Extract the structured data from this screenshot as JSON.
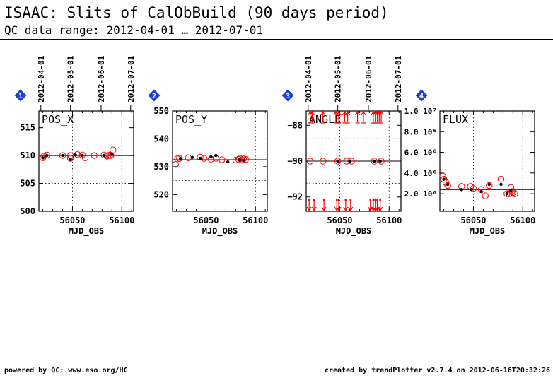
{
  "header": {
    "title": "ISAAC: Slits of CalObBuild (90 days period)",
    "subtitle": "QC data range: 2012-04-01 … 2012-07-01"
  },
  "footer": {
    "left": "powered by QC: www.eso.org/HC",
    "right": "created by trendPlotter v2.7.4 on 2012-06-16T20:32:26"
  },
  "colors": {
    "axis": "#000000",
    "marker": "#ff0000",
    "badge": "#1f3fd8",
    "badge_text": "#ffffff"
  },
  "chart_data": [
    {
      "type": "scatter",
      "index": "1",
      "title": "POS_X",
      "xlabel": "MJD_OBS",
      "xlim": [
        56016,
        56112
      ],
      "ylim": [
        500,
        518
      ],
      "yticks": [
        500,
        505,
        510,
        515
      ],
      "ytick_labels": [
        "500",
        "505",
        "510",
        "515"
      ],
      "xticks": [
        56050,
        56100
      ],
      "date_ticks": [
        {
          "mjd": 56018,
          "label": "2012-04-01"
        },
        {
          "mjd": 56048,
          "label": "2012-05-01"
        },
        {
          "mjd": 56079,
          "label": "2012-06-01"
        },
        {
          "mjd": 56109,
          "label": "2012-07-01"
        }
      ],
      "reference_line": 510,
      "dotted_lines": [
        505,
        513
      ],
      "open_points": [
        [
          56020,
          509.6
        ],
        [
          56021,
          509.9
        ],
        [
          56024,
          510.1
        ],
        [
          56040,
          510.0
        ],
        [
          56048,
          510.0
        ],
        [
          56048,
          509.5
        ],
        [
          56055,
          510.2
        ],
        [
          56060,
          510.1
        ],
        [
          56063,
          509.6
        ],
        [
          56072,
          510.0
        ],
        [
          56082,
          510.1
        ],
        [
          56085,
          509.9
        ],
        [
          56086,
          510.0
        ],
        [
          56088,
          510.1
        ],
        [
          56089,
          510.0
        ],
        [
          56091,
          511.0
        ]
      ],
      "filled_points": [
        [
          56020,
          509.6
        ],
        [
          56024,
          510.0
        ],
        [
          56040,
          510.0
        ],
        [
          56048,
          509.3
        ],
        [
          56053,
          510.1
        ],
        [
          56060,
          510.0
        ],
        [
          56082,
          510.0
        ],
        [
          56090,
          510.3
        ]
      ]
    },
    {
      "type": "scatter",
      "index": "2",
      "title": "POS_Y",
      "xlabel": "MJD_OBS",
      "xlim": [
        56016,
        56112
      ],
      "ylim": [
        514,
        550
      ],
      "yticks": [
        520,
        530,
        540,
        550
      ],
      "ytick_labels": [
        "520",
        "530",
        "540",
        "550"
      ],
      "xticks": [
        56050,
        56100
      ],
      "reference_line": 532.5,
      "dotted_lines": [
        525,
        540
      ],
      "open_points": [
        [
          56019,
          530.8
        ],
        [
          56021,
          532.8
        ],
        [
          56023,
          533.0
        ],
        [
          56032,
          533.2
        ],
        [
          56044,
          533.4
        ],
        [
          56048,
          533.0
        ],
        [
          56055,
          532.7
        ],
        [
          56060,
          533.0
        ],
        [
          56066,
          532.5
        ],
        [
          56080,
          532.4
        ],
        [
          56083,
          532.6
        ],
        [
          56084,
          533.0
        ],
        [
          56086,
          532.5
        ],
        [
          56088,
          532.8
        ],
        [
          56090,
          532.6
        ]
      ],
      "filled_points": [
        [
          56024,
          533.0
        ],
        [
          56036,
          533.3
        ],
        [
          56044,
          533.0
        ],
        [
          56055,
          533.5
        ],
        [
          56060,
          534.0
        ],
        [
          56072,
          531.7
        ],
        [
          56084,
          532.5
        ],
        [
          56088,
          532.3
        ]
      ]
    },
    {
      "type": "scatter",
      "index": "3",
      "title": "ANGLE",
      "xlabel": "MJD_OBS",
      "xlim": [
        56016,
        56112
      ],
      "ylim": [
        -92.8,
        -87.2
      ],
      "yticks": [
        -92,
        -90,
        -88
      ],
      "ytick_labels": [
        "−92",
        "−90",
        "−88"
      ],
      "xticks": [
        56050,
        56100
      ],
      "date_ticks": [
        {
          "mjd": 56018,
          "label": "2012-04-01"
        },
        {
          "mjd": 56048,
          "label": "2012-05-01"
        },
        {
          "mjd": 56079,
          "label": "2012-06-01"
        },
        {
          "mjd": 56109,
          "label": "2012-07-01"
        }
      ],
      "reference_line": -90,
      "dotted_lines": [
        -91.25,
        -88.75
      ],
      "open_points": [
        [
          56020,
          -90.0
        ],
        [
          56033,
          -90.0
        ],
        [
          56048,
          -90.0
        ],
        [
          56057,
          -90.0
        ],
        [
          56062,
          -90.0
        ],
        [
          56085,
          -90.0
        ],
        [
          56092,
          -90.0
        ]
      ],
      "filled_points": [
        [
          56048,
          -90.0
        ],
        [
          56060,
          -90.0
        ],
        [
          56085,
          -90.0
        ],
        [
          56091,
          -90.0
        ]
      ],
      "outliers_top_x": [
        56020,
        56022,
        56033,
        56046,
        56049,
        56055,
        56058,
        56068,
        56074,
        56084,
        56086,
        56088,
        56090,
        56092
      ],
      "outliers_bottom_x": [
        56019,
        56024,
        56034,
        56047,
        56049,
        56056,
        56061,
        56081,
        56084,
        56086,
        56088,
        56091
      ]
    },
    {
      "type": "scatter",
      "index": "4",
      "title": "FLUX",
      "xlabel": "MJD_OBS",
      "xlim": [
        56016,
        56112
      ],
      "ylim": [
        300000,
        10000000
      ],
      "yticks": [
        2000000,
        4000000,
        6000000,
        8000000,
        10000000
      ],
      "ytick_labels": [
        "2.0 10⁶",
        "4.0 10⁶",
        "6.0 10⁶",
        "8.0 10⁶",
        "1.0 10⁷"
      ],
      "xticks": [
        56050,
        56100
      ],
      "reference_line": 2400000,
      "open_points": [
        [
          56019,
          3700000
        ],
        [
          56020,
          3400000
        ],
        [
          56022,
          3100000
        ],
        [
          56024,
          2800000
        ],
        [
          56038,
          2700000
        ],
        [
          56047,
          2700000
        ],
        [
          56050,
          2500000
        ],
        [
          56058,
          2400000
        ],
        [
          56062,
          1800000
        ],
        [
          56066,
          2800000
        ],
        [
          56078,
          3400000
        ],
        [
          56084,
          2000000
        ],
        [
          56086,
          2000000
        ],
        [
          56088,
          2600000
        ],
        [
          56089,
          2200000
        ],
        [
          56090,
          2100000
        ],
        [
          56092,
          2000000
        ]
      ],
      "filled_points": [
        [
          56020,
          3400000
        ],
        [
          56024,
          2900000
        ],
        [
          56038,
          2400000
        ],
        [
          56048,
          2400000
        ],
        [
          56058,
          2200000
        ],
        [
          56066,
          2900000
        ],
        [
          56078,
          2900000
        ],
        [
          56084,
          2000000
        ],
        [
          56088,
          2300000
        ]
      ]
    }
  ]
}
